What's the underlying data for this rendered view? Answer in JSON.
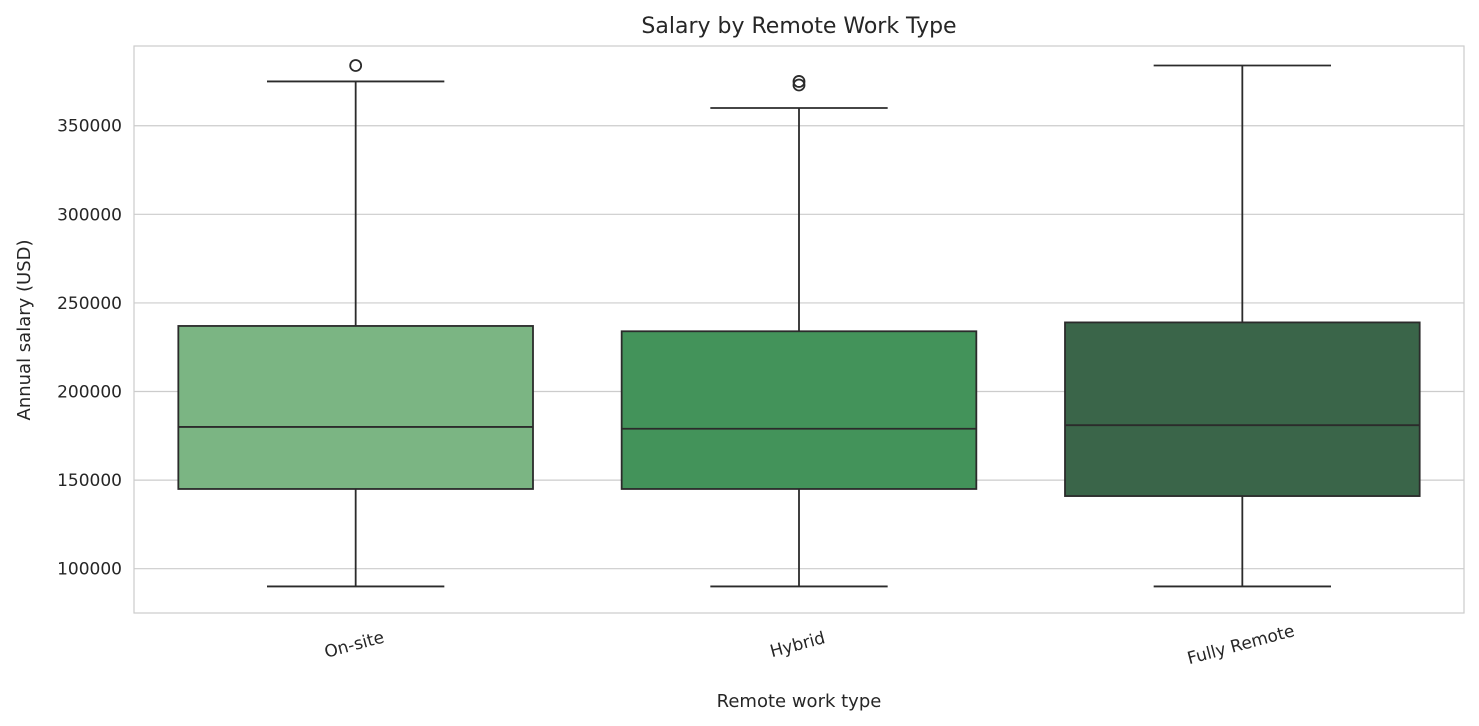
{
  "chart_data": {
    "type": "box",
    "title": "Salary by Remote Work Type",
    "xlabel": "Remote work type",
    "ylabel": "Annual salary (USD)",
    "ylim": [
      75000,
      395000
    ],
    "yticks": [
      100000,
      150000,
      200000,
      250000,
      300000,
      350000
    ],
    "ytick_labels": [
      "100000",
      "150000",
      "200000",
      "250000",
      "300000",
      "350000"
    ],
    "grid": true,
    "categories": [
      "On-site",
      "Hybrid",
      "Fully Remote"
    ],
    "boxes": [
      {
        "name": "On-site",
        "whislo": 90000,
        "q1": 145000,
        "med": 180000,
        "q3": 237000,
        "whishi": 375000,
        "fliers": [
          384000
        ],
        "color": "#7bb583"
      },
      {
        "name": "Hybrid",
        "whislo": 90000,
        "q1": 145000,
        "med": 179000,
        "q3": 234000,
        "whishi": 360000,
        "fliers": [
          373000,
          375000
        ],
        "color": "#43935a"
      },
      {
        "name": "Fully Remote",
        "whislo": 90000,
        "q1": 141000,
        "med": 181000,
        "q3": 239000,
        "whishi": 384000,
        "fliers": [],
        "color": "#3a6549"
      }
    ]
  }
}
